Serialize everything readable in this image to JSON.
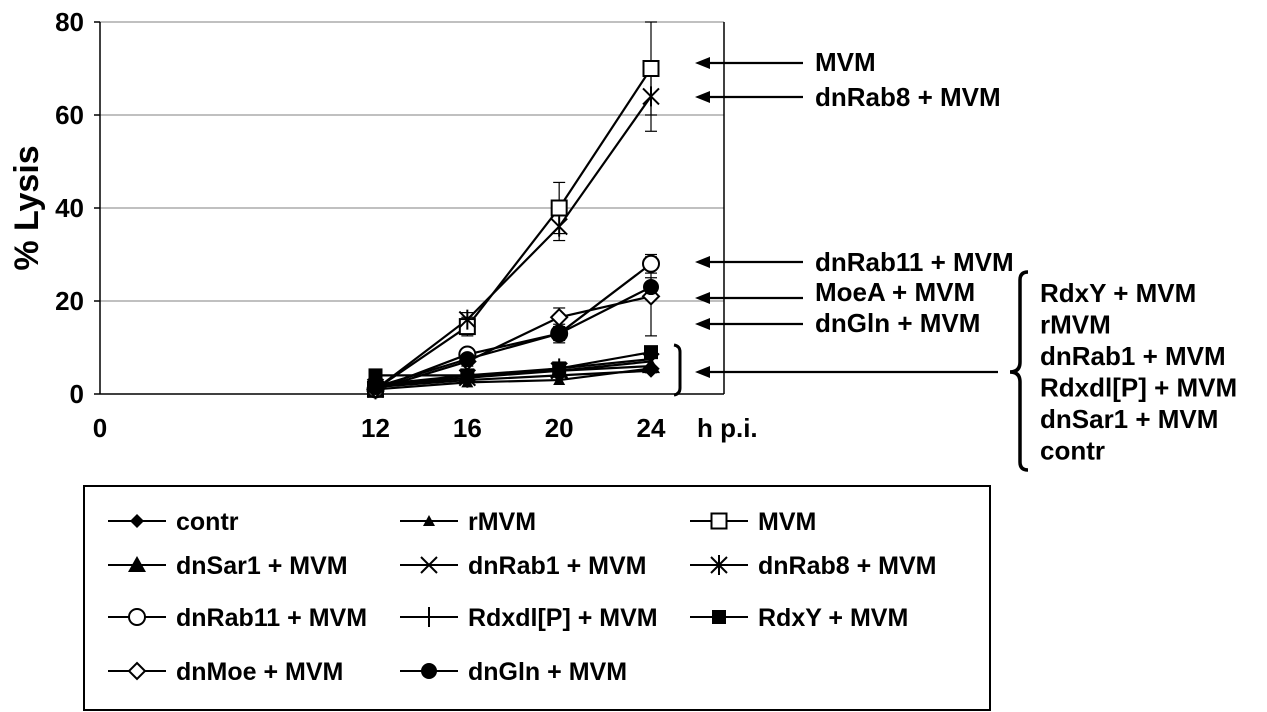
{
  "chart_data": {
    "type": "line",
    "title": "",
    "ylabel": "% Lysis",
    "xlabel": "h p.i.",
    "ylim": [
      0,
      80
    ],
    "xlim": [
      0,
      24
    ],
    "y_ticks": [
      "0",
      "20",
      "40",
      "60",
      "80"
    ],
    "x_ticks": [
      "0",
      "12",
      "16",
      "20",
      "24"
    ],
    "x": [
      12,
      16,
      20,
      24
    ],
    "grid": "horizontal",
    "legend_position": "bottom",
    "series": [
      {
        "name": "contr",
        "marker": "diamond-filled",
        "values": [
          1.5,
          3,
          4,
          5
        ]
      },
      {
        "name": "rMVM",
        "marker": "triangle-filled-small",
        "values": [
          1,
          2.5,
          3,
          5.5
        ]
      },
      {
        "name": "MVM",
        "marker": "square-open",
        "values": [
          1,
          14.5,
          40,
          70
        ],
        "errors": [
          0.5,
          2,
          5.5,
          10
        ]
      },
      {
        "name": "dnSar1 + MVM",
        "marker": "triangle-filled",
        "values": [
          2,
          4,
          5,
          6
        ]
      },
      {
        "name": "dnRab1 + MVM",
        "marker": "x",
        "values": [
          1.5,
          3.5,
          5,
          7
        ]
      },
      {
        "name": "dnRab8 + MVM",
        "marker": "asterisk",
        "values": [
          1,
          16,
          36,
          64
        ],
        "errors": [
          0.5,
          1.5,
          3,
          7.5
        ]
      },
      {
        "name": "dnRab11 + MVM",
        "marker": "circle-open",
        "values": [
          1,
          8.5,
          13,
          28
        ],
        "errors": [
          0.5,
          1,
          1.5,
          2
        ]
      },
      {
        "name": "Rdxdl[P] + MVM",
        "marker": "plus",
        "values": [
          2,
          3.5,
          5.5,
          7.5
        ]
      },
      {
        "name": "RdxY + MVM",
        "marker": "square-filled",
        "values": [
          4,
          4,
          5.5,
          9
        ]
      },
      {
        "name": "dnMoe + MVM",
        "marker": "diamond-open",
        "values": [
          1,
          7,
          16.5,
          21
        ],
        "errors": [
          0.5,
          1,
          2,
          8.5
        ]
      },
      {
        "name": "dnGln + MVM",
        "marker": "circle-filled",
        "values": [
          1.5,
          7.5,
          13,
          23
        ],
        "errors": [
          0.5,
          1,
          2,
          2
        ]
      }
    ],
    "annotations": {
      "right": [
        "MVM",
        "dnRab8 + MVM",
        "dnRab11 + MVM",
        "MoeA + MVM",
        "dnGln + MVM"
      ],
      "bracket_group": [
        "RdxY + MVM",
        "rMVM",
        "dnRab1 + MVM",
        "Rdxdl[P] + MVM",
        "dnSar1 + MVM",
        "contr"
      ]
    }
  }
}
